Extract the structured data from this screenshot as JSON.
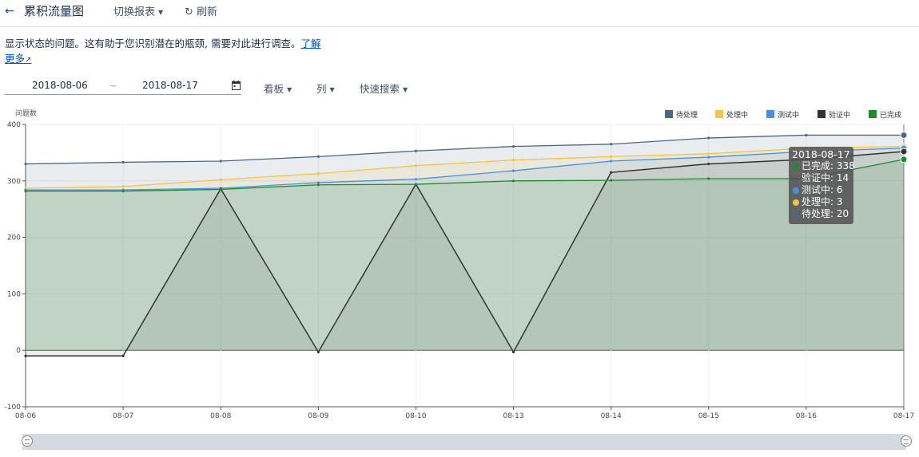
{
  "header": {
    "back_icon": "arrow-left-icon",
    "title": "累积流量图",
    "switch_report": "切换报表",
    "refresh": "刷新"
  },
  "description": {
    "text": "显示状态的问题。这有助于您识别潜在的瓶颈, 需要对此进行调查。",
    "learn_link": "了解",
    "more_link": "更多"
  },
  "filters": {
    "date_from": "2018-08-06",
    "date_sep": "~",
    "date_to": "2018-08-17",
    "board": "看板",
    "columns": "列",
    "quick_search": "快速搜索"
  },
  "colors": {
    "todo": "#4a6785",
    "doing": "#f6c342",
    "testing": "#4a90e2",
    "verifying": "#333333",
    "done": "#1e8a2e"
  },
  "chart_data": {
    "type": "area",
    "ylabel": "问题数",
    "ylim": [
      -100,
      400
    ],
    "yticks": [
      400,
      300,
      200,
      100,
      0,
      -100
    ],
    "categories": [
      "08-06",
      "08-07",
      "08-08",
      "08-09",
      "08-10",
      "08-13",
      "08-14",
      "08-15",
      "08-16",
      "08-17"
    ],
    "legend_position": "top-right",
    "series": [
      {
        "name": "待处理",
        "color": "#4a6785",
        "values": [
          330,
          333,
          335,
          343,
          353,
          361,
          365,
          376,
          381,
          381
        ]
      },
      {
        "name": "处理中",
        "color": "#f6c342",
        "values": [
          287,
          290,
          302,
          313,
          327,
          337,
          343,
          348,
          358,
          361
        ]
      },
      {
        "name": "测试中",
        "color": "#4a90e2",
        "values": [
          284,
          284,
          287,
          297,
          303,
          318,
          335,
          342,
          352,
          358
        ]
      },
      {
        "name": "验证中",
        "color": "#333333",
        "values": [
          -10,
          -10,
          286,
          -3,
          294,
          -3,
          315,
          330,
          338,
          352
        ]
      },
      {
        "name": "已完成",
        "color": "#1e8a2e",
        "values": [
          282,
          282,
          285,
          293,
          294,
          300,
          301,
          304,
          304,
          338
        ]
      }
    ],
    "tooltip": {
      "title": "2018-08-17",
      "rows": [
        {
          "label": "已完成: 338",
          "color": "#1e8a2e"
        },
        {
          "label": "验证中: 14",
          "color": ""
        },
        {
          "label": "测试中: 6",
          "color": "#4a90e2"
        },
        {
          "label": "处理中: 3",
          "color": "#f6c342"
        },
        {
          "label": "待处理: 20",
          "color": "#4a6785"
        }
      ]
    }
  }
}
